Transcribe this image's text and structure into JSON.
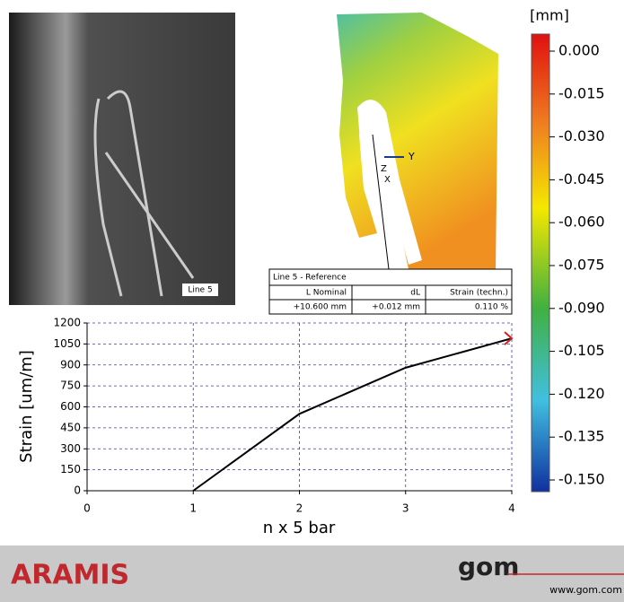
{
  "chart_data": {
    "type": "line",
    "x": [
      1,
      2,
      3,
      4
    ],
    "values": [
      0,
      550,
      880,
      1090
    ],
    "color": "#000000",
    "xlim": [
      0,
      4
    ],
    "xticks": [
      0,
      1,
      2,
      3,
      4
    ],
    "ylim": [
      0,
      1200
    ],
    "yticks": [
      0,
      150,
      300,
      450,
      600,
      750,
      900,
      1050,
      1200
    ],
    "grid": true,
    "xlabel": "n x 5 bar",
    "ylabel": "Strain [um/m]"
  },
  "photo": {
    "label": "Line 5"
  },
  "deviation_map": {
    "axes": [
      "Y",
      "Z",
      "X"
    ]
  },
  "colorbar": {
    "unit": "[mm]",
    "ticks": [
      {
        "value": 0,
        "label": "0.000"
      },
      {
        "value": -0.015,
        "label": "-0.015"
      },
      {
        "value": -0.03,
        "label": "-0.030"
      },
      {
        "value": -0.045,
        "label": "-0.045"
      },
      {
        "value": -0.06,
        "label": "-0.060"
      },
      {
        "value": -0.075,
        "label": "-0.075"
      },
      {
        "value": -0.09,
        "label": "-0.090"
      },
      {
        "value": -0.105,
        "label": "-0.105"
      },
      {
        "value": -0.12,
        "label": "-0.120"
      },
      {
        "value": -0.135,
        "label": "-0.135"
      },
      {
        "value": -0.15,
        "label": "-0.150"
      }
    ]
  },
  "reference_table": {
    "title": "Line 5 - Reference",
    "headers": [
      "L Nominal",
      "dL",
      "Strain (techn.)"
    ],
    "row": [
      "+10.600 mm",
      "+0.012 mm",
      "0.110 %"
    ]
  },
  "footer": {
    "product": "ARAMIS",
    "logo": "gom",
    "url": "www.gom.com"
  }
}
